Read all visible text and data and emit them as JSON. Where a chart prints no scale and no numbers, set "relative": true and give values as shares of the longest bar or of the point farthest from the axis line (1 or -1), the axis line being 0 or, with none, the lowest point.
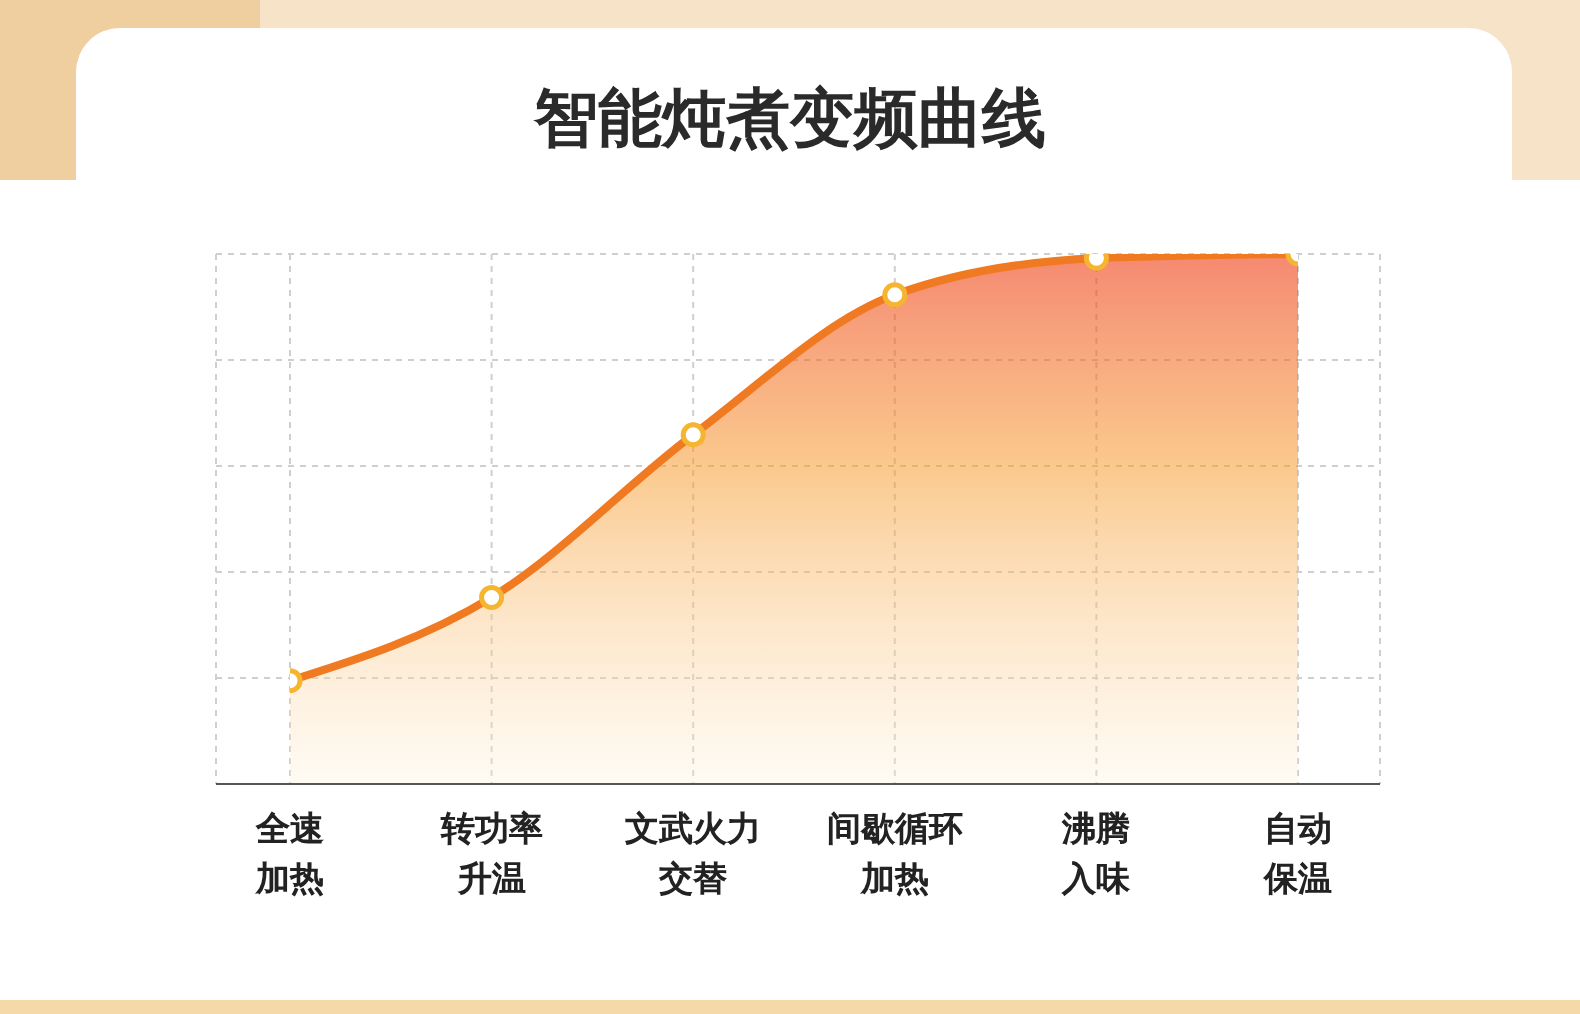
{
  "chart_data": {
    "type": "area",
    "title": "智能炖煮变频曲线",
    "categories": [
      "全速加热",
      "转功率升温",
      "文武火力交替",
      "间歇循环加热",
      "沸腾入味",
      "自动保温"
    ],
    "relative": true,
    "series": [
      {
        "color": "#f07a22",
        "values": [
          0.195,
          0.352,
          0.659,
          0.923,
          0.992,
          1.0
        ]
      }
    ],
    "grid": true,
    "marker": "circle"
  }
}
